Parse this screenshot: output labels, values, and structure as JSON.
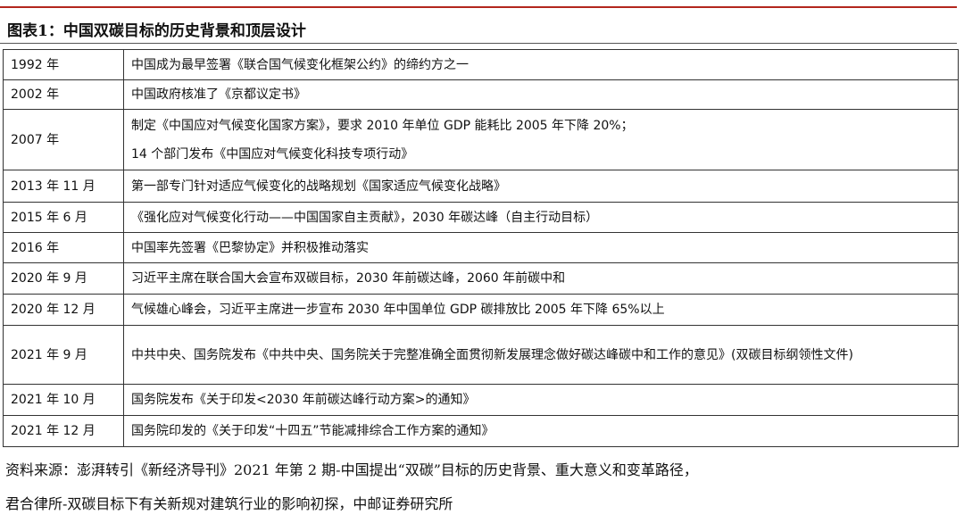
{
  "header": {
    "title": "图表1：中国双碳目标的历史背景和顶层设计"
  },
  "table": {
    "rows": [
      {
        "year": "1992 年",
        "lines": [
          "中国成为最早签署《联合国气候变化框架公约》的缔约方之一"
        ]
      },
      {
        "year": "2002 年",
        "lines": [
          "中国政府核准了《京都议定书》"
        ]
      },
      {
        "year": "2007 年",
        "lines": [
          "制定《中国应对气候变化国家方案》，要求 2010 年单位 GDP 能耗比 2005 年下降 20%；",
          "14 个部门发布《中国应对气候变化科技专项行动》"
        ]
      },
      {
        "year": "2013 年 11 月",
        "lines": [
          "第一部专门针对适应气候变化的战略规划《国家适应气候变化战略》"
        ]
      },
      {
        "year": "2015 年 6 月",
        "lines": [
          "《强化应对气候变化行动——中国国家自主贡献》，2030 年碳达峰（自主行动目标）"
        ]
      },
      {
        "year": "2016 年",
        "lines": [
          "中国率先签署《巴黎协定》并积极推动落实"
        ]
      },
      {
        "year": "2020 年 9 月",
        "lines": [
          "习近平主席在联合国大会宣布双碳目标，2030 年前碳达峰，2060 年前碳中和"
        ]
      },
      {
        "year": "2020 年 12 月",
        "lines": [
          "气候雄心峰会，习近平主席进一步宣布 2030 年中国单位 GDP 碳排放比 2005 年下降 65%以上"
        ]
      },
      {
        "year": "2021 年 9 月",
        "lines": [
          "中共中央、国务院发布《中共中央、国务院关于完整准确全面贯彻新发展理念做好碳达峰碳中和工作的意见》(双碳目标纲领性文件)"
        ]
      },
      {
        "year": "2021 年 10 月",
        "lines": [
          "国务院发布《关于印发<2030 年前碳达峰行动方案>的通知》"
        ]
      },
      {
        "year": "2021 年 12 月",
        "lines": [
          "国务院印发的《关于印发“十四五”节能减排综合工作方案的通知》"
        ]
      }
    ]
  },
  "footer": {
    "lines": [
      "资料来源：澎湃转引《新经济导刊》2021 年第 2 期-中国提出“双碳”目标的历史背景、重大意义和变革路径，",
      "君合律所-双碳目标下有关新规对建筑行业的影响初探，中邮证券研究所"
    ]
  }
}
